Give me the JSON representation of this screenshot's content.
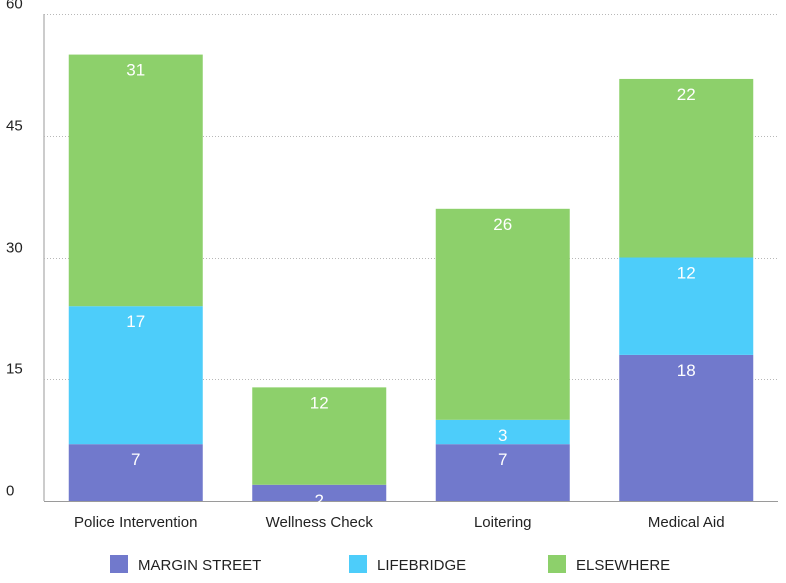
{
  "chart_data": {
    "type": "bar",
    "stacked": true,
    "categories": [
      "Police Intervention",
      "Wellness Check",
      "Loitering",
      "Medical Aid"
    ],
    "series": [
      {
        "name": "MARGIN STREET",
        "values": [
          7,
          2,
          7,
          18
        ],
        "color": "#7179cc"
      },
      {
        "name": "LIFEBRIDGE",
        "values": [
          17,
          0,
          3,
          12
        ],
        "color": "#4dcdfa"
      },
      {
        "name": "ELSEWHERE",
        "values": [
          31,
          12,
          26,
          22
        ],
        "color": "#8dd06b"
      }
    ],
    "ylim": [
      0,
      60
    ],
    "yticks": [
      0,
      15,
      30,
      45,
      60
    ],
    "grid": true,
    "legend_position": "bottom"
  }
}
